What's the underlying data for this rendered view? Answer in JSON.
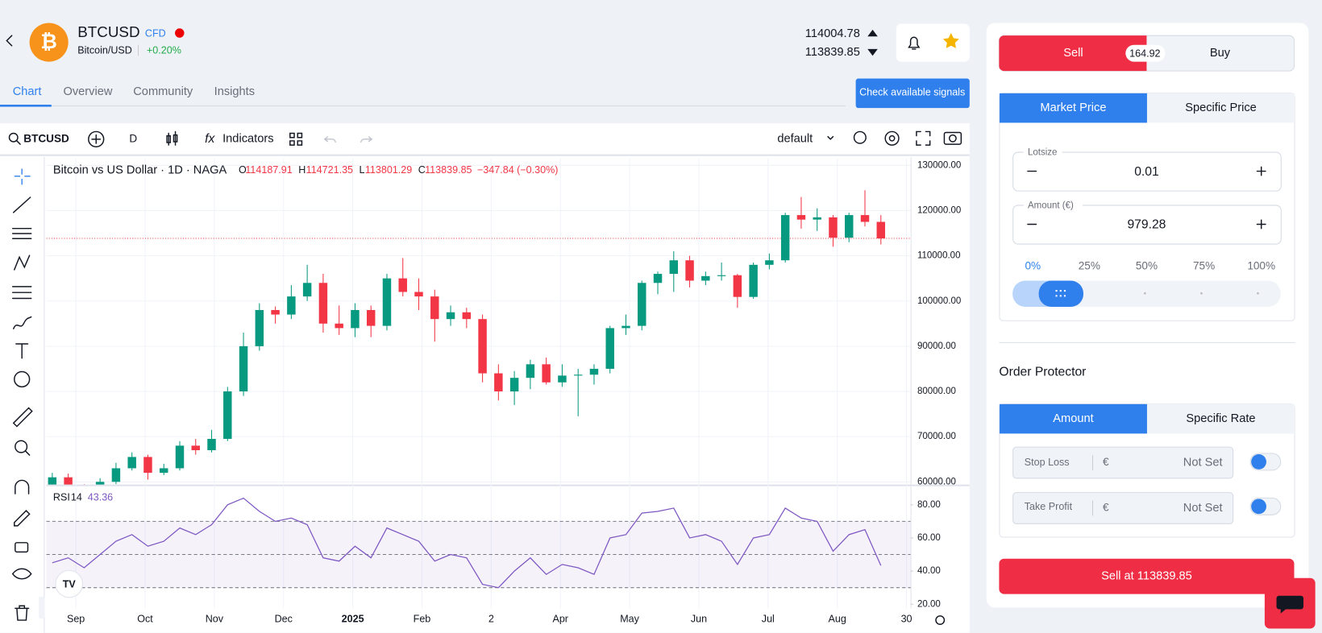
{
  "header": {
    "symbol": "BTCUSD",
    "badge": "CFD",
    "name": "Bitcoin/USD",
    "change": "+0.20%",
    "ask": 114004.78,
    "bid": 113839.85
  },
  "tabs": [
    "Chart",
    "Overview",
    "Community",
    "Insights"
  ],
  "signals_button": "Check available signals",
  "toolbar": {
    "symbol": "BTCUSD",
    "interval": "D",
    "indicators": "Indicators",
    "layout": "default"
  },
  "legend": {
    "title": "Bitcoin vs US Dollar · 1D · NAGA",
    "items": [
      {
        "label": "O",
        "value": "114187.91"
      },
      {
        "label": "H",
        "value": "114721.35"
      },
      {
        "label": "L",
        "value": "113801.29"
      },
      {
        "label": "C",
        "value": "113839.85"
      }
    ],
    "change": "−347.84 (−0.30%)"
  },
  "chart_data": {
    "type": "candlestick",
    "x_labels": [
      "Sep",
      "Oct",
      "Nov",
      "Dec",
      "2025",
      "Feb",
      "2",
      "Apr",
      "May",
      "Jun",
      "Jul",
      "Aug",
      "30"
    ],
    "open": [
      59000,
      61000,
      59000,
      57000,
      60000,
      63000,
      65500,
      62000,
      63000,
      68000,
      67000,
      69500,
      80000,
      90000,
      98000,
      97000,
      101000,
      104000,
      95000,
      94000,
      98000,
      94500,
      105000,
      102000,
      101000,
      96000,
      97500,
      96000,
      84000,
      80000,
      83000,
      86000,
      82000,
      83500,
      83700,
      85000,
      94000,
      94500,
      104000,
      106000,
      109000,
      104500,
      105500,
      105700,
      100900,
      108000,
      109000,
      119000,
      118000,
      118500,
      114000,
      119000,
      117500
    ],
    "high": [
      62000,
      61800,
      59500,
      60800,
      64200,
      66500,
      66000,
      64000,
      69000,
      69500,
      71500,
      81000,
      93000,
      99500,
      98800,
      103500,
      108000,
      106000,
      99000,
      99500,
      99000,
      106000,
      109500,
      105000,
      102500,
      99000,
      98500,
      97000,
      86000,
      84500,
      87000,
      87500,
      86000,
      85000,
      86000,
      94500,
      97000,
      104500,
      106500,
      111000,
      110000,
      106500,
      108500,
      106000,
      108500,
      110500,
      119500,
      123000,
      120500,
      119000,
      119500,
      124500,
      119000
    ],
    "low": [
      58000,
      58500,
      56000,
      56800,
      59500,
      62500,
      60500,
      61500,
      62500,
      66000,
      66500,
      69000,
      79000,
      89000,
      95000,
      96000,
      100000,
      93000,
      92500,
      92000,
      92000,
      93500,
      101000,
      98000,
      91000,
      94500,
      94000,
      82000,
      78000,
      77000,
      80500,
      81500,
      81000,
      74500,
      81500,
      84000,
      92500,
      93500,
      101500,
      102000,
      103000,
      103500,
      104500,
      98500,
      100500,
      107000,
      108500,
      116000,
      115500,
      112000,
      113000,
      116500,
      112500
    ],
    "close": [
      61000,
      59000,
      57000,
      60000,
      63000,
      65500,
      62000,
      63000,
      68000,
      67000,
      69500,
      80000,
      90000,
      98000,
      97000,
      101000,
      104000,
      95000,
      94000,
      98000,
      94500,
      105000,
      102000,
      101000,
      96000,
      97500,
      96000,
      84000,
      80000,
      83000,
      86000,
      82000,
      83500,
      83700,
      85000,
      94000,
      94500,
      104000,
      106000,
      109000,
      104500,
      105500,
      105700,
      100900,
      108000,
      109000,
      119000,
      118000,
      118500,
      114000,
      119000,
      117500,
      113840
    ],
    "up_color": "#089981",
    "down_color": "#f23645",
    "grid": true,
    "ylim": [
      59400,
      131500
    ],
    "yticks": [
      {
        "value": 130000,
        "label": "130000.00"
      },
      {
        "value": 120000,
        "label": "120000.00"
      },
      {
        "value": 110000,
        "label": "110000.00"
      },
      {
        "value": 100000,
        "label": "100000.00"
      },
      {
        "value": 90000,
        "label": "90000.00"
      },
      {
        "value": 80000,
        "label": "80000.00"
      },
      {
        "value": 70000,
        "label": "70000.00"
      },
      {
        "value": 60000,
        "label": "60000.00"
      }
    ],
    "rsi": {
      "name": "RSI",
      "period": 14,
      "current": "43.36",
      "color": "#7e57c2",
      "values": [
        45,
        48,
        42,
        50,
        58,
        62,
        55,
        58,
        66,
        62,
        68,
        80,
        84,
        76,
        70,
        72,
        68,
        48,
        46,
        55,
        48,
        66,
        62,
        58,
        46,
        50,
        48,
        32,
        30,
        40,
        48,
        38,
        44,
        42,
        38,
        60,
        62,
        75,
        76,
        78,
        60,
        62,
        58,
        44,
        60,
        62,
        78,
        72,
        70,
        52,
        62,
        65,
        43.36
      ],
      "levels": [
        30,
        50,
        70
      ],
      "ylim": [
        17.5,
        91.2
      ],
      "yticks": [
        {
          "value": 80,
          "label": "80.00"
        },
        {
          "value": 60,
          "label": "60.00"
        },
        {
          "value": 40,
          "label": "40.00"
        },
        {
          "value": 20,
          "label": "20.00"
        }
      ]
    }
  },
  "order": {
    "sell": "Sell",
    "spread": 164.92,
    "buy": "Buy",
    "price_tabs": [
      "Market Price",
      "Specific Price"
    ],
    "lotsize_label": "Lotsize",
    "lotsize": 0.01,
    "amount_label": "Amount (€)",
    "amount": 979.28,
    "percentages": [
      "0%",
      "25%",
      "50%",
      "75%",
      "100%"
    ],
    "protector_title": "Order Protector",
    "protector_tabs": [
      "Amount",
      "Specific Rate"
    ],
    "stop_loss": {
      "label": "Stop Loss",
      "currency": "€",
      "value": "Not Set"
    },
    "take_profit": {
      "label": "Take Profit",
      "currency": "€",
      "value": "Not Set"
    },
    "submit": "Sell at 113839.85"
  }
}
